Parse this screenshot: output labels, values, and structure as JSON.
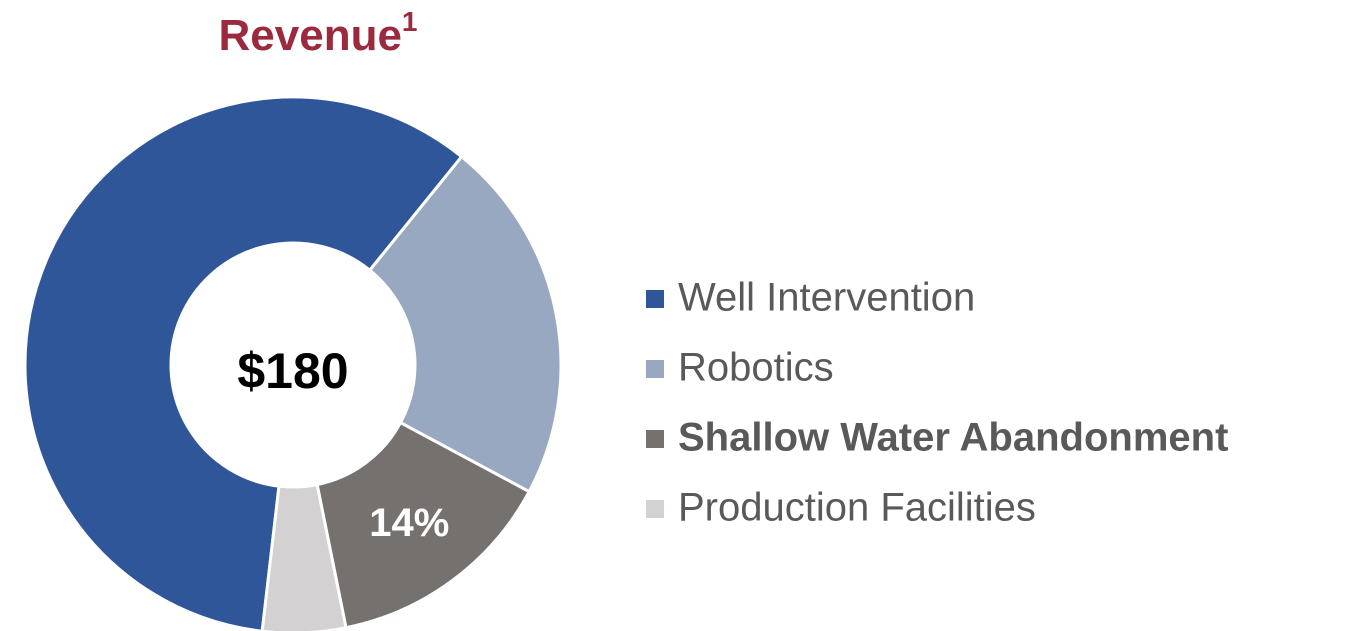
{
  "chart_data": {
    "type": "donut",
    "title": "Revenue",
    "title_superscript": "1",
    "center_label": "$180",
    "categories": [
      "Well Intervention",
      "Robotics",
      "Shallow Water Abandonment",
      "Production Facilities"
    ],
    "values": [
      59,
      22,
      14,
      5
    ],
    "value_labels": [
      null,
      null,
      "14%",
      null
    ],
    "colors": [
      "#30569a",
      "#97a8c0",
      "#75716f",
      "#d3d1d2"
    ],
    "highlight_index": 2,
    "legend": "right"
  }
}
